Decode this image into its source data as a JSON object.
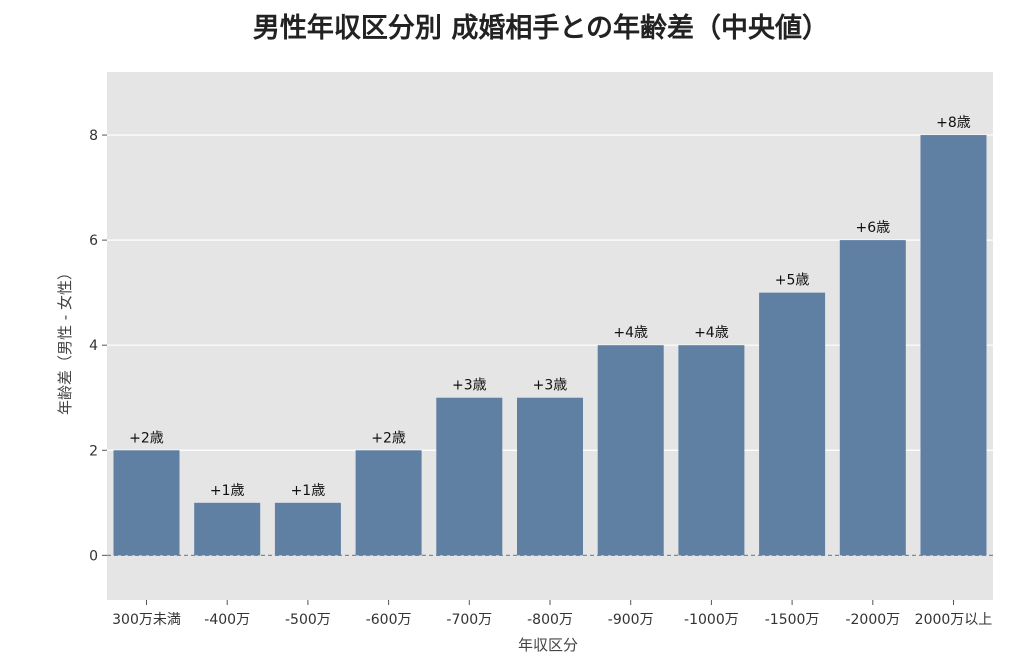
{
  "chart_data": {
    "type": "bar",
    "title": "男性年収区分別 成婚相手との年齢差（中央値）",
    "xlabel": "年収区分",
    "ylabel": "年齢差（男性 - 女性）",
    "categories": [
      "300万未満",
      "-400万",
      "-500万",
      "-600万",
      "-700万",
      "-800万",
      "-900万",
      "-1000万",
      "-1500万",
      "-2000万",
      "2000万以上"
    ],
    "values": [
      2,
      1,
      1,
      2,
      3,
      3,
      4,
      4,
      5,
      6,
      8
    ],
    "data_labels": [
      "+2歳",
      "+1歳",
      "+1歳",
      "+2歳",
      "+3歳",
      "+3歳",
      "+4歳",
      "+4歳",
      "+5歳",
      "+6歳",
      "+8歳"
    ],
    "yticks": [
      "0",
      "2",
      "4",
      "6",
      "8"
    ],
    "ylim": [
      -0.85,
      9.2
    ],
    "grid": true,
    "legend": "none",
    "colors": {
      "bar": "#5f7fa3",
      "panel": "#e5e5e5",
      "grid": "#ffffff",
      "zero_line": "#888888"
    }
  }
}
